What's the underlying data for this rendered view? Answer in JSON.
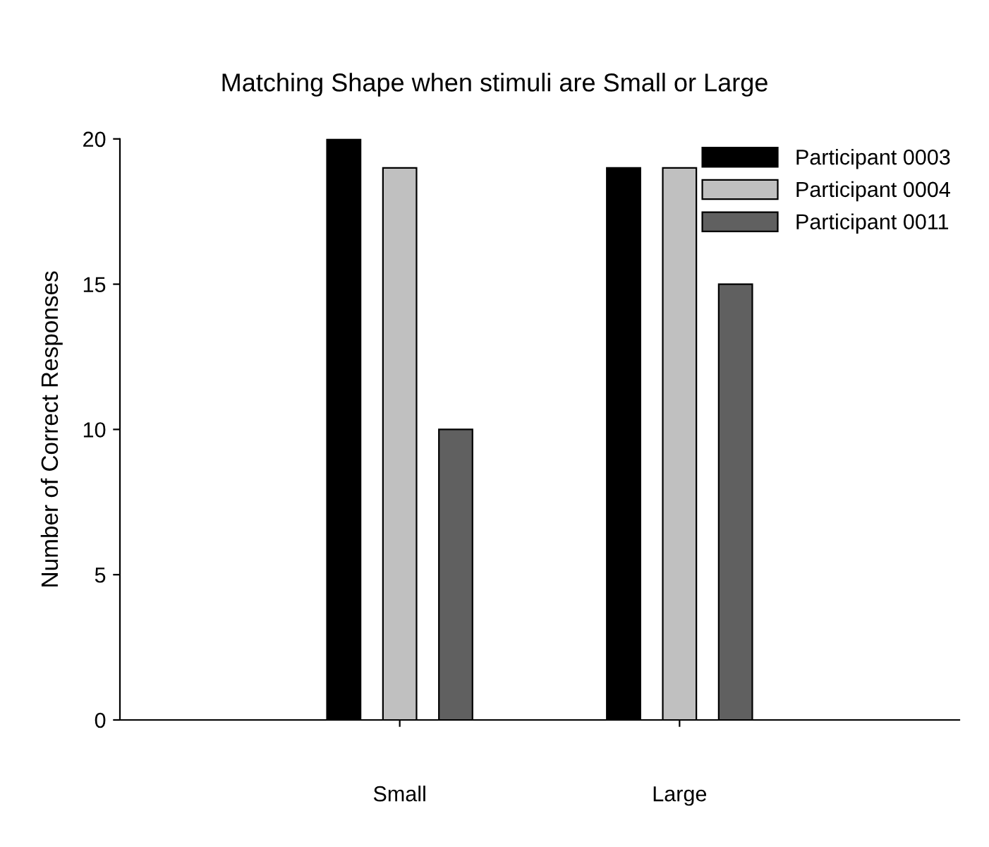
{
  "chart_data": {
    "type": "bar",
    "title": "Matching Shape when stimuli are Small or Large",
    "ylabel": "Number of Correct Responses",
    "categories": [
      "Small",
      "Large"
    ],
    "series": [
      {
        "name": "Participant 0003",
        "color": "#000000",
        "values": [
          20,
          19
        ]
      },
      {
        "name": "Participant 0004",
        "color": "#c0c0c0",
        "values": [
          19,
          19
        ]
      },
      {
        "name": "Participant 0011",
        "color": "#606060",
        "values": [
          10,
          15
        ]
      }
    ],
    "ylim": [
      0,
      20
    ],
    "yticks": [
      0,
      5,
      10,
      15,
      20
    ],
    "grid": false,
    "legend": "top right"
  }
}
